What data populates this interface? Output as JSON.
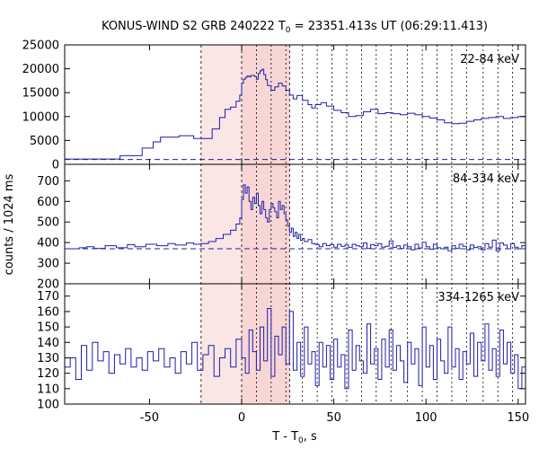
{
  "chart_data": {
    "type": "line",
    "title": "KONUS-WIND S2 GRB 240222 T",
    "title_sub": "0",
    "title_rest": " = 23351.413s UT (06:29:11.413)",
    "xlabel": "T - T",
    "xlabel_sub": "0",
    "xlabel_rest": ", s",
    "ylabel": "counts / 1024 ms",
    "xlim": [
      -96,
      154
    ],
    "x_ticks": [
      -50,
      0,
      50,
      100,
      150
    ],
    "shading": {
      "outer": [
        -22,
        26
      ],
      "inner": [
        0,
        26
      ],
      "color": "#f4b8b8"
    },
    "dotted_lines": [
      8,
      16,
      24,
      33,
      41,
      49,
      57,
      65,
      73,
      81,
      90,
      98,
      106,
      114,
      122,
      131,
      139,
      147
    ],
    "line_color": "#1e1ea8",
    "panels": [
      {
        "band_label": "22-84 keV",
        "ylim": [
          0,
          25000
        ],
        "y_ticks": [
          0,
          5000,
          10000,
          15000,
          20000,
          25000
        ],
        "background": 1000,
        "step": [
          [
            -96,
            1100
          ],
          [
            -66,
            1800
          ],
          [
            -54,
            3400
          ],
          [
            -48,
            4700
          ],
          [
            -44,
            5700
          ],
          [
            -34,
            6000
          ],
          [
            -26,
            5400
          ],
          [
            -16,
            7400
          ],
          [
            -12,
            9800
          ],
          [
            -9,
            11500
          ],
          [
            -6,
            12000
          ],
          [
            -3,
            13200
          ],
          [
            -1,
            14500
          ],
          [
            0,
            17000
          ],
          [
            1,
            17800
          ],
          [
            2,
            18200
          ],
          [
            3,
            18500
          ],
          [
            4,
            18300
          ],
          [
            5,
            18600
          ],
          [
            7,
            18400
          ],
          [
            8,
            17800
          ],
          [
            9,
            19000
          ],
          [
            10,
            19600
          ],
          [
            11,
            19900
          ],
          [
            12,
            18800
          ],
          [
            13,
            17700
          ],
          [
            14,
            16500
          ],
          [
            16,
            15500
          ],
          [
            18,
            16200
          ],
          [
            20,
            17000
          ],
          [
            22,
            16400
          ],
          [
            24,
            15500
          ],
          [
            26,
            14500
          ],
          [
            28,
            13700
          ],
          [
            30,
            14400
          ],
          [
            33,
            13400
          ],
          [
            36,
            12500
          ],
          [
            38,
            11800
          ],
          [
            40,
            12500
          ],
          [
            43,
            12900
          ],
          [
            46,
            12200
          ],
          [
            50,
            11300
          ],
          [
            54,
            10800
          ],
          [
            58,
            10000
          ],
          [
            62,
            10200
          ],
          [
            66,
            11000
          ],
          [
            70,
            11500
          ],
          [
            74,
            10600
          ],
          [
            78,
            10800
          ],
          [
            82,
            10600
          ],
          [
            86,
            10400
          ],
          [
            90,
            10700
          ],
          [
            94,
            10400
          ],
          [
            98,
            10000
          ],
          [
            102,
            9700
          ],
          [
            106,
            9300
          ],
          [
            110,
            8700
          ],
          [
            114,
            8500
          ],
          [
            118,
            8600
          ],
          [
            122,
            9000
          ],
          [
            126,
            9300
          ],
          [
            130,
            9600
          ],
          [
            134,
            9800
          ],
          [
            138,
            10000
          ],
          [
            142,
            9600
          ],
          [
            146,
            9800
          ],
          [
            150,
            10000
          ],
          [
            154,
            9900
          ]
        ]
      },
      {
        "band_label": "84-334 keV",
        "ylim": [
          200,
          780
        ],
        "y_ticks": [
          200,
          300,
          400,
          500,
          600,
          700
        ],
        "background": 370,
        "step": [
          [
            -96,
            370
          ],
          [
            -88,
            375
          ],
          [
            -84,
            380
          ],
          [
            -80,
            372
          ],
          [
            -74,
            385
          ],
          [
            -68,
            375
          ],
          [
            -62,
            390
          ],
          [
            -58,
            380
          ],
          [
            -52,
            392
          ],
          [
            -46,
            385
          ],
          [
            -40,
            395
          ],
          [
            -36,
            388
          ],
          [
            -30,
            398
          ],
          [
            -26,
            392
          ],
          [
            -22,
            395
          ],
          [
            -18,
            405
          ],
          [
            -14,
            420
          ],
          [
            -10,
            440
          ],
          [
            -6,
            460
          ],
          [
            -3,
            490
          ],
          [
            -1,
            520
          ],
          [
            0,
            610
          ],
          [
            1,
            680
          ],
          [
            2,
            640
          ],
          [
            3,
            670
          ],
          [
            4,
            600
          ],
          [
            5,
            560
          ],
          [
            6,
            620
          ],
          [
            7,
            590
          ],
          [
            8,
            640
          ],
          [
            9,
            580
          ],
          [
            10,
            540
          ],
          [
            11,
            600
          ],
          [
            12,
            560
          ],
          [
            13,
            520
          ],
          [
            14,
            500
          ],
          [
            15,
            560
          ],
          [
            16,
            590
          ],
          [
            17,
            570
          ],
          [
            18,
            550
          ],
          [
            19,
            520
          ],
          [
            20,
            600
          ],
          [
            21,
            560
          ],
          [
            22,
            580
          ],
          [
            23,
            540
          ],
          [
            24,
            510
          ],
          [
            25,
            480
          ],
          [
            26,
            450
          ],
          [
            27,
            470
          ],
          [
            28,
            430
          ],
          [
            29,
            450
          ],
          [
            30,
            420
          ],
          [
            31,
            440
          ],
          [
            32,
            410
          ],
          [
            33,
            420
          ],
          [
            34,
            405
          ],
          [
            36,
            415
          ],
          [
            38,
            395
          ],
          [
            40,
            390
          ],
          [
            42,
            380
          ],
          [
            44,
            395
          ],
          [
            46,
            385
          ],
          [
            48,
            390
          ],
          [
            50,
            378
          ],
          [
            52,
            392
          ],
          [
            54,
            382
          ],
          [
            56,
            388
          ],
          [
            58,
            376
          ],
          [
            60,
            392
          ],
          [
            62,
            384
          ],
          [
            64,
            380
          ],
          [
            66,
            398
          ],
          [
            68,
            372
          ],
          [
            70,
            390
          ],
          [
            72,
            385
          ],
          [
            74,
            395
          ],
          [
            76,
            378
          ],
          [
            78,
            382
          ],
          [
            80,
            408
          ],
          [
            82,
            376
          ],
          [
            84,
            384
          ],
          [
            86,
            372
          ],
          [
            88,
            388
          ],
          [
            90,
            380
          ],
          [
            92,
            365
          ],
          [
            94,
            392
          ],
          [
            96,
            374
          ],
          [
            98,
            402
          ],
          [
            100,
            380
          ],
          [
            102,
            368
          ],
          [
            104,
            392
          ],
          [
            106,
            375
          ],
          [
            108,
            370
          ],
          [
            110,
            378
          ],
          [
            112,
            360
          ],
          [
            114,
            385
          ],
          [
            116,
            372
          ],
          [
            118,
            392
          ],
          [
            120,
            382
          ],
          [
            122,
            365
          ],
          [
            124,
            388
          ],
          [
            126,
            376
          ],
          [
            128,
            380
          ],
          [
            130,
            365
          ],
          [
            132,
            395
          ],
          [
            134,
            378
          ],
          [
            136,
            412
          ],
          [
            138,
            360
          ],
          [
            140,
            398
          ],
          [
            142,
            388
          ],
          [
            144,
            370
          ],
          [
            146,
            395
          ],
          [
            148,
            378
          ],
          [
            150,
            370
          ],
          [
            152,
            385
          ],
          [
            154,
            380
          ]
        ]
      },
      {
        "band_label": "334-1265 keV",
        "ylim": [
          100,
          178
        ],
        "y_ticks": [
          100,
          110,
          120,
          130,
          140,
          150,
          160,
          170
        ],
        "background": null,
        "step": [
          [
            -96,
            124
          ],
          [
            -93,
            130
          ],
          [
            -90,
            116
          ],
          [
            -87,
            138
          ],
          [
            -84,
            122
          ],
          [
            -81,
            140
          ],
          [
            -78,
            128
          ],
          [
            -75,
            134
          ],
          [
            -72,
            120
          ],
          [
            -69,
            132
          ],
          [
            -66,
            126
          ],
          [
            -63,
            136
          ],
          [
            -60,
            124
          ],
          [
            -57,
            130
          ],
          [
            -54,
            122
          ],
          [
            -51,
            134
          ],
          [
            -48,
            128
          ],
          [
            -45,
            136
          ],
          [
            -42,
            124
          ],
          [
            -39,
            130
          ],
          [
            -36,
            120
          ],
          [
            -33,
            134
          ],
          [
            -30,
            126
          ],
          [
            -27,
            140
          ],
          [
            -24,
            122
          ],
          [
            -21,
            132
          ],
          [
            -18,
            138
          ],
          [
            -15,
            118
          ],
          [
            -12,
            130
          ],
          [
            -9,
            136
          ],
          [
            -6,
            124
          ],
          [
            -3,
            142
          ],
          [
            0,
            130
          ],
          [
            2,
            120
          ],
          [
            4,
            148
          ],
          [
            6,
            134
          ],
          [
            8,
            122
          ],
          [
            10,
            150
          ],
          [
            12,
            128
          ],
          [
            14,
            162
          ],
          [
            16,
            118
          ],
          [
            18,
            144
          ],
          [
            20,
            132
          ],
          [
            22,
            150
          ],
          [
            24,
            126
          ],
          [
            26,
            160
          ],
          [
            28,
            122
          ],
          [
            30,
            140
          ],
          [
            32,
            118
          ],
          [
            34,
            150
          ],
          [
            36,
            126
          ],
          [
            38,
            134
          ],
          [
            40,
            112
          ],
          [
            42,
            140
          ],
          [
            44,
            124
          ],
          [
            46,
            138
          ],
          [
            48,
            116
          ],
          [
            50,
            142
          ],
          [
            52,
            124
          ],
          [
            54,
            132
          ],
          [
            56,
            110
          ],
          [
            58,
            148
          ],
          [
            60,
            122
          ],
          [
            62,
            138
          ],
          [
            64,
            128
          ],
          [
            66,
            120
          ],
          [
            68,
            152
          ],
          [
            70,
            126
          ],
          [
            72,
            136
          ],
          [
            74,
            116
          ],
          [
            76,
            142
          ],
          [
            78,
            124
          ],
          [
            80,
            148
          ],
          [
            82,
            122
          ],
          [
            84,
            138
          ],
          [
            86,
            128
          ],
          [
            88,
            114
          ],
          [
            90,
            140
          ],
          [
            92,
            126
          ],
          [
            94,
            136
          ],
          [
            96,
            112
          ],
          [
            98,
            150
          ],
          [
            100,
            124
          ],
          [
            102,
            138
          ],
          [
            104,
            116
          ],
          [
            106,
            142
          ],
          [
            108,
            128
          ],
          [
            110,
            120
          ],
          [
            112,
            150
          ],
          [
            114,
            124
          ],
          [
            116,
            136
          ],
          [
            118,
            116
          ],
          [
            120,
            134
          ],
          [
            122,
            126
          ],
          [
            124,
            146
          ],
          [
            126,
            118
          ],
          [
            128,
            140
          ],
          [
            130,
            128
          ],
          [
            132,
            152
          ],
          [
            134,
            122
          ],
          [
            136,
            136
          ],
          [
            138,
            118
          ],
          [
            140,
            148
          ],
          [
            142,
            126
          ],
          [
            144,
            140
          ],
          [
            146,
            120
          ],
          [
            148,
            132
          ],
          [
            150,
            110
          ],
          [
            152,
            124
          ],
          [
            154,
            118
          ]
        ]
      }
    ]
  }
}
